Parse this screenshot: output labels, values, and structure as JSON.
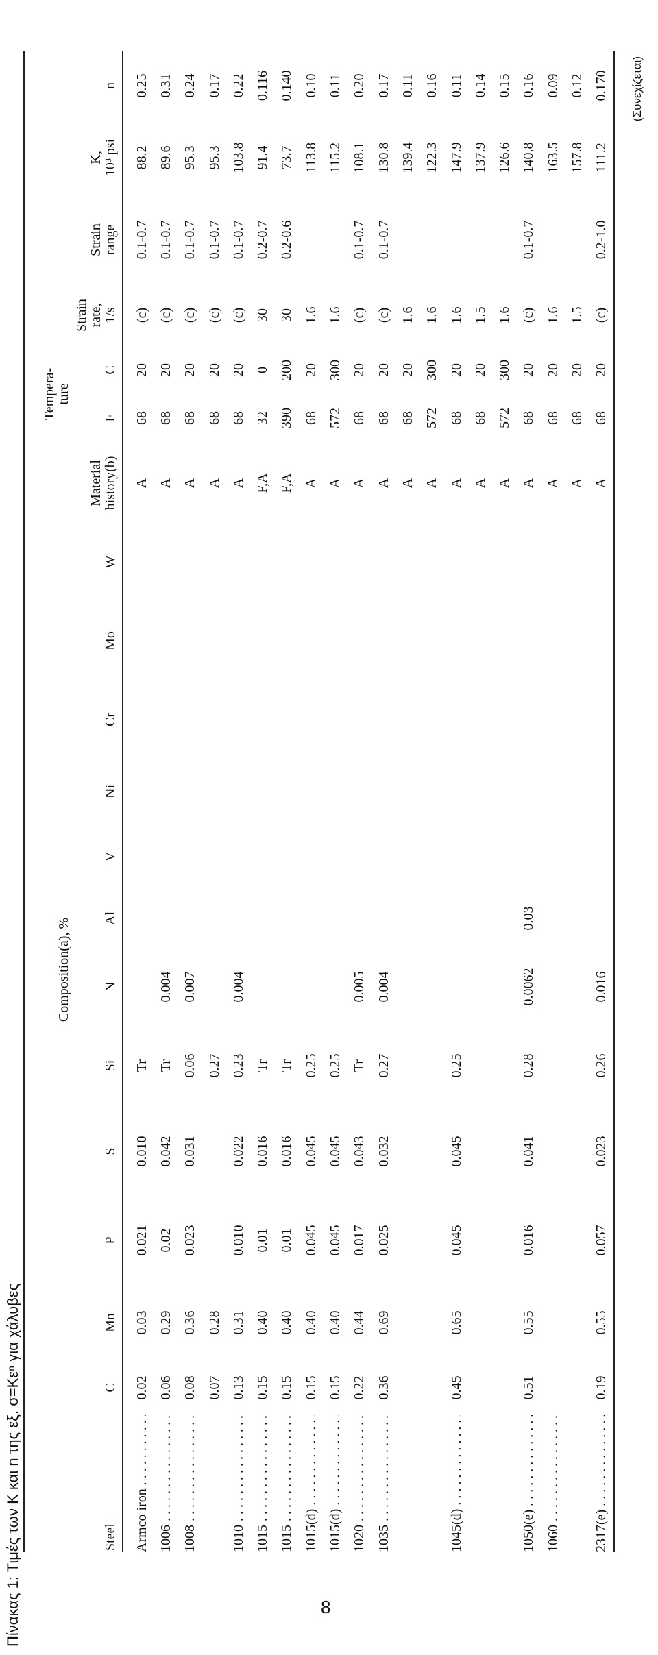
{
  "caption": "Πίνακας 1: Τιμές των Κ και n της εξ. σ=Κεⁿ για χάλυβες",
  "table": {
    "group_headers": {
      "composition": "Composition(a), %",
      "temperature": [
        "Tempera-",
        "ture"
      ]
    },
    "columns": [
      [
        "Steel"
      ],
      [
        "C"
      ],
      [
        "Mn"
      ],
      [
        "P"
      ],
      [
        "S"
      ],
      [
        "Si"
      ],
      [
        "N"
      ],
      [
        "Al"
      ],
      [
        "V"
      ],
      [
        "Ni"
      ],
      [
        "Cr"
      ],
      [
        "Mo"
      ],
      [
        "W"
      ],
      [
        "Material",
        "history(b)"
      ],
      [
        "F"
      ],
      [
        "C"
      ],
      [
        "Strain",
        "rate,",
        "1/s"
      ],
      [
        "Strain",
        "range"
      ],
      [
        "K,",
        "10³ psi"
      ],
      [
        "n"
      ]
    ],
    "rows": [
      [
        "Armco iron",
        "0.02",
        "0.03",
        "0.021",
        "0.010",
        "Tr",
        null,
        null,
        null,
        null,
        null,
        null,
        null,
        "A",
        "68",
        "20",
        "(c)",
        "0.1-0.7",
        "88.2",
        "0.25"
      ],
      [
        "1006",
        "0.06",
        "0.29",
        "0.02",
        "0.042",
        "Tr",
        "0.004",
        null,
        null,
        null,
        null,
        null,
        null,
        "A",
        "68",
        "20",
        "(c)",
        "0.1-0.7",
        "89.6",
        "0.31"
      ],
      [
        "1008",
        "0.08",
        "0.36",
        "0.023",
        "0.031",
        "0.06",
        "0.007",
        null,
        null,
        null,
        null,
        null,
        null,
        "A",
        "68",
        "20",
        "(c)",
        "0.1-0.7",
        "95.3",
        "0.24"
      ],
      [
        null,
        "0.07",
        "0.28",
        null,
        null,
        "0.27",
        null,
        null,
        null,
        null,
        null,
        null,
        null,
        "A",
        "68",
        "20",
        "(c)",
        "0.1-0.7",
        "95.3",
        "0.17"
      ],
      [
        "1010",
        "0.13",
        "0.31",
        "0.010",
        "0.022",
        "0.23",
        "0.004",
        null,
        null,
        null,
        null,
        null,
        null,
        "A",
        "68",
        "20",
        "(c)",
        "0.1-0.7",
        "103.8",
        "0.22"
      ],
      [
        "1015",
        "0.15",
        "0.40",
        "0.01",
        "0.016",
        "Tr",
        null,
        null,
        null,
        null,
        null,
        null,
        null,
        "F,A",
        "32",
        "0",
        "30",
        "0.2-0.7",
        "91.4",
        "0.116"
      ],
      [
        "1015",
        "0.15",
        "0.40",
        "0.01",
        "0.016",
        "Tr",
        null,
        null,
        null,
        null,
        null,
        null,
        null,
        "F,A",
        "390",
        "200",
        "30",
        "0.2-0.6",
        "73.7",
        "0.140"
      ],
      [
        "1015(d)",
        "0.15",
        "0.40",
        "0.045",
        "0.045",
        "0.25",
        null,
        null,
        null,
        null,
        null,
        null,
        null,
        "A",
        "68",
        "20",
        "1.6",
        null,
        "113.8",
        "0.10"
      ],
      [
        "1015(d)",
        "0.15",
        "0.40",
        "0.045",
        "0.045",
        "0.25",
        null,
        null,
        null,
        null,
        null,
        null,
        null,
        "A",
        "572",
        "300",
        "1.6",
        null,
        "115.2",
        "0.11"
      ],
      [
        "1020",
        "0.22",
        "0.44",
        "0.017",
        "0.043",
        "Tr",
        "0.005",
        null,
        null,
        null,
        null,
        null,
        null,
        "A",
        "68",
        "20",
        "(c)",
        "0.1-0.7",
        "108.1",
        "0.20"
      ],
      [
        "1035",
        "0.36",
        "0.69",
        "0.025",
        "0.032",
        "0.27",
        "0.004",
        null,
        null,
        null,
        null,
        null,
        null,
        "A",
        "68",
        "20",
        "(c)",
        "0.1-0.7",
        "130.8",
        "0.17"
      ],
      [
        null,
        null,
        null,
        null,
        null,
        null,
        null,
        null,
        null,
        null,
        null,
        null,
        null,
        "A",
        "68",
        "20",
        "1.6",
        null,
        "139.4",
        "0.11"
      ],
      [
        null,
        null,
        null,
        null,
        null,
        null,
        null,
        null,
        null,
        null,
        null,
        null,
        null,
        "A",
        "572",
        "300",
        "1.6",
        null,
        "122.3",
        "0.16"
      ],
      [
        "1045(d)",
        "0.45",
        "0.65",
        "0.045",
        "0.045",
        "0.25",
        null,
        null,
        null,
        null,
        null,
        null,
        null,
        "A",
        "68",
        "20",
        "1.6",
        null,
        "147.9",
        "0.11"
      ],
      [
        null,
        null,
        null,
        null,
        null,
        null,
        null,
        null,
        null,
        null,
        null,
        null,
        null,
        "A",
        "68",
        "20",
        "1.5",
        null,
        "137.9",
        "0.14"
      ],
      [
        null,
        null,
        null,
        null,
        null,
        null,
        null,
        null,
        null,
        null,
        null,
        null,
        null,
        "A",
        "572",
        "300",
        "1.6",
        null,
        "126.6",
        "0.15"
      ],
      [
        "1050(e)",
        "0.51",
        "0.55",
        "0.016",
        "0.041",
        "0.28",
        "0.0062",
        "0.03",
        null,
        null,
        null,
        null,
        null,
        "A",
        "68",
        "20",
        "(c)",
        "0.1-0.7",
        "140.8",
        "0.16"
      ],
      [
        "1060",
        null,
        null,
        null,
        null,
        null,
        null,
        null,
        null,
        null,
        null,
        null,
        null,
        "A",
        "68",
        "20",
        "1.6",
        null,
        "163.5",
        "0.09"
      ],
      [
        null,
        null,
        null,
        null,
        null,
        null,
        null,
        null,
        null,
        null,
        null,
        null,
        null,
        "A",
        "68",
        "20",
        "1.5",
        null,
        "157.8",
        "0.12"
      ],
      [
        "2317(e)",
        "0.19",
        "0.55",
        "0.057",
        "0.023",
        "0.26",
        "0.016",
        null,
        null,
        null,
        null,
        null,
        null,
        "A",
        "68",
        "20",
        "(c)",
        "0.2-1.0",
        "111.2",
        "0.170"
      ]
    ]
  },
  "note": "(Συνεχίζεται)",
  "page_number": "8"
}
